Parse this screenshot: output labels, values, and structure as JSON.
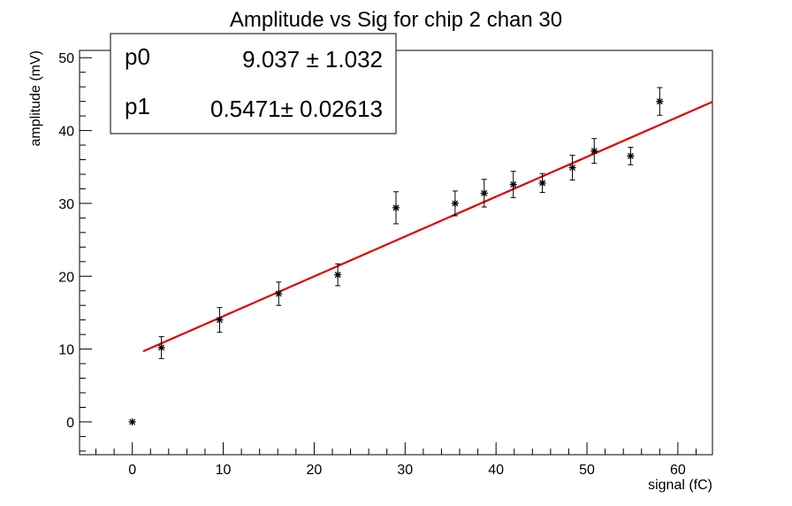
{
  "chart_data": {
    "type": "scatter",
    "title": "Amplitude vs Sig for chip 2 chan 30",
    "xlabel": "signal (fC)",
    "ylabel": "amplitude (mV)",
    "xlim": [
      -5.8,
      63.8
    ],
    "ylim": [
      -4.5,
      51
    ],
    "xticks": [
      "0",
      "10",
      "20",
      "30",
      "40",
      "50",
      "60"
    ],
    "yticks": [
      "0",
      "10",
      "20",
      "30",
      "40",
      "50"
    ],
    "grid": false,
    "series": [
      {
        "points": [
          {
            "x": 0.0,
            "y": 0.0,
            "err": 0.0
          },
          {
            "x": 3.2,
            "y": 10.2,
            "err": 1.5
          },
          {
            "x": 9.6,
            "y": 14.0,
            "err": 1.7
          },
          {
            "x": 16.1,
            "y": 17.6,
            "err": 1.6
          },
          {
            "x": 22.6,
            "y": 20.2,
            "err": 1.5
          },
          {
            "x": 29.0,
            "y": 29.4,
            "err": 2.2
          },
          {
            "x": 35.5,
            "y": 30.0,
            "err": 1.7
          },
          {
            "x": 38.7,
            "y": 31.4,
            "err": 1.9
          },
          {
            "x": 41.9,
            "y": 32.6,
            "err": 1.8
          },
          {
            "x": 45.1,
            "y": 32.8,
            "err": 1.3
          },
          {
            "x": 48.4,
            "y": 34.9,
            "err": 1.7
          },
          {
            "x": 50.8,
            "y": 37.2,
            "err": 1.7
          },
          {
            "x": 54.8,
            "y": 36.5,
            "err": 1.2
          },
          {
            "x": 58.0,
            "y": 44.0,
            "err": 1.9
          }
        ],
        "marker_color": "#000000"
      }
    ],
    "fit": {
      "color": "#dd0000",
      "x_range": [
        1.2,
        63.8
      ],
      "params": [
        {
          "name": "p0",
          "value": "9.037",
          "error": "1.032",
          "num": 9.037
        },
        {
          "name": "p1",
          "value": "0.5471",
          "error": "0.02613",
          "num": 0.5471
        }
      ]
    },
    "stats_box": {
      "rows": [
        {
          "label": "p0",
          "text": "9.037 ± 1.032"
        },
        {
          "label": "p1",
          "text": "0.5471± 0.02613"
        }
      ]
    }
  }
}
